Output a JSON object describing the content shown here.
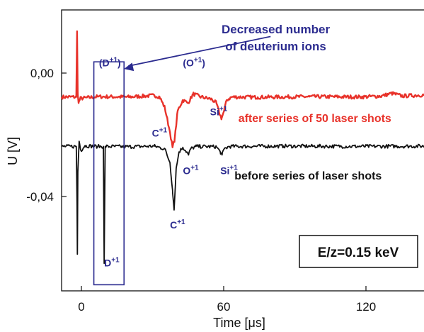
{
  "chart_data": {
    "type": "line",
    "xlabel": "Time [μs]",
    "ylabel": "U [V]",
    "xlim": [
      -6,
      135
    ],
    "ylim": [
      -0.071,
      0.021
    ],
    "x_ticks": [
      0,
      60,
      120
    ],
    "x_tick_labels": [
      "0",
      "60",
      "120"
    ],
    "y_ticks": [
      0.0,
      -0.04
    ],
    "y_tick_labels": [
      "0,00",
      "-0,04"
    ],
    "grid": false,
    "series": [
      {
        "name": "after series of 50 laser shots",
        "color": "#e8322a",
        "baseline": -0.008,
        "noise": 0.0006,
        "points": [
          [
            -6,
            -0.0075
          ],
          [
            -0.3,
            -0.0075
          ],
          [
            0,
            0.014
          ],
          [
            0.25,
            -0.006
          ],
          [
            0.6,
            -0.0095
          ],
          [
            1.2,
            -0.008
          ],
          [
            8,
            -0.0074
          ],
          [
            20,
            -0.0075
          ],
          [
            30,
            -0.007
          ],
          [
            32,
            -0.0075
          ],
          [
            34,
            -0.011
          ],
          [
            36,
            -0.019
          ],
          [
            37,
            -0.024
          ],
          [
            37.8,
            -0.0215
          ],
          [
            39,
            -0.012
          ],
          [
            41,
            -0.0085
          ],
          [
            43,
            -0.0095
          ],
          [
            45,
            -0.0065
          ],
          [
            48,
            -0.0075
          ],
          [
            52,
            -0.0082
          ],
          [
            54,
            -0.0095
          ],
          [
            55,
            -0.0125
          ],
          [
            56,
            -0.0145
          ],
          [
            57,
            -0.012
          ],
          [
            58,
            -0.0085
          ],
          [
            60,
            -0.0075
          ],
          [
            70,
            -0.0076
          ],
          [
            90,
            -0.0074
          ],
          [
            110,
            -0.0075
          ],
          [
            118,
            -0.0072
          ],
          [
            122,
            -0.0063
          ],
          [
            126,
            -0.0072
          ],
          [
            135,
            -0.0068
          ]
        ]
      },
      {
        "name": "before series of laser shots",
        "color": "#111111",
        "baseline": -0.0237,
        "noise": 0.0006,
        "points": [
          [
            -6,
            -0.0237
          ],
          [
            -0.3,
            -0.0237
          ],
          [
            0,
            -0.043
          ],
          [
            0.12,
            -0.059
          ],
          [
            0.3,
            -0.032
          ],
          [
            0.8,
            -0.022
          ],
          [
            1.5,
            -0.025
          ],
          [
            3,
            -0.0235
          ],
          [
            8,
            -0.0237
          ],
          [
            10.2,
            -0.0237
          ],
          [
            10.5,
            -0.062
          ],
          [
            10.9,
            -0.0237
          ],
          [
            20,
            -0.0238
          ],
          [
            30,
            -0.0236
          ],
          [
            34,
            -0.0245
          ],
          [
            36,
            -0.029
          ],
          [
            37,
            -0.038
          ],
          [
            37.6,
            -0.0445
          ],
          [
            38.4,
            -0.031
          ],
          [
            39.5,
            -0.0255
          ],
          [
            41,
            -0.024
          ],
          [
            42.5,
            -0.0255
          ],
          [
            43.2,
            -0.0265
          ],
          [
            44,
            -0.0245
          ],
          [
            46,
            -0.0237
          ],
          [
            54,
            -0.0238
          ],
          [
            55.5,
            -0.0255
          ],
          [
            56.2,
            -0.0265
          ],
          [
            57,
            -0.0245
          ],
          [
            59,
            -0.0237
          ],
          [
            80,
            -0.0236
          ],
          [
            110,
            -0.0237
          ],
          [
            135,
            -0.0236
          ]
        ]
      }
    ],
    "peak_labels": [
      {
        "ion": "(D",
        "charge": "+1",
        "close": ")",
        "color": "#2b2b8f",
        "x": 8.5,
        "y": 0.0025
      },
      {
        "ion": "(O",
        "charge": "+1",
        "close": ")",
        "color": "#2b2b8f",
        "x": 41,
        "y": 0.0025
      },
      {
        "ion": "C",
        "charge": "+1",
        "close": "",
        "color": "#2b2b8f",
        "x": 29,
        "y": -0.0205
      },
      {
        "ion": "Si",
        "charge": "+1",
        "close": "",
        "color": "#2b2b8f",
        "x": 51.5,
        "y": -0.0135
      },
      {
        "ion": "O",
        "charge": "+1",
        "close": "",
        "color": "#2b2b8f",
        "x": 41,
        "y": -0.0328
      },
      {
        "ion": "Si",
        "charge": "+1",
        "close": "",
        "color": "#2b2b8f",
        "x": 55.5,
        "y": -0.0328
      },
      {
        "ion": "C",
        "charge": "+1",
        "close": "",
        "color": "#2b2b8f",
        "x": 36,
        "y": -0.0505
      },
      {
        "ion": "D",
        "charge": "+1",
        "close": "",
        "color": "#2b2b8f",
        "x": 10.5,
        "y": -0.063
      }
    ],
    "series_labels": [
      {
        "text": "after series of 50 laser shots",
        "color": "#e8322a",
        "x": 62.5,
        "y": -0.0157
      },
      {
        "text": "before series of laser shots",
        "color": "#111111",
        "x": 61,
        "y": -0.0345
      }
    ],
    "callout": {
      "line1": "Decreased number",
      "line2": "of deuterium ions",
      "color": "#2b2b8f",
      "box_x": [
        6.5,
        18.2
      ],
      "box_y": [
        -0.069,
        0.004
      ],
      "text_x": 77,
      "arrow_from": [
        75,
        0.0123
      ],
      "arrow_to": [
        18.2,
        0.0017
      ]
    },
    "energy_label": "E/z=0.15 keV"
  }
}
